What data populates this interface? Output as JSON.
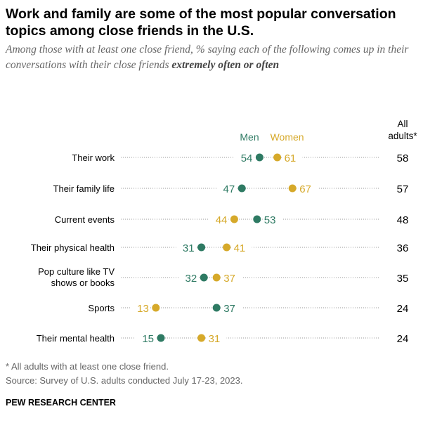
{
  "title": "Work and family are some of the most popular conversation topics among close friends in the U.S.",
  "subtitle": "Among those with at least one close friend, % saying each of the following comes up in their conversations with their close friends",
  "subtitle_emphasis": "extremely often or often",
  "chart_data": {
    "type": "dot",
    "categories": [
      "Their work",
      "Their family life",
      "Current events",
      "Their physical health",
      "Pop culture like TV shows or books",
      "Sports",
      "Their mental health"
    ],
    "series": [
      {
        "name": "Men",
        "color": "#2e7a63",
        "values": [
          54,
          47,
          53,
          31,
          32,
          37,
          15
        ]
      },
      {
        "name": "Women",
        "color": "#d6a92a",
        "values": [
          61,
          67,
          44,
          41,
          37,
          13,
          31
        ]
      }
    ],
    "total_header": "All adults*",
    "total": [
      58,
      57,
      48,
      36,
      35,
      24,
      24
    ]
  },
  "footnote": "* All adults with at least one close friend.",
  "source": "Source: Survey of U.S. adults conducted July 17-23, 2023.",
  "brand": "PEW RESEARCH CENTER"
}
